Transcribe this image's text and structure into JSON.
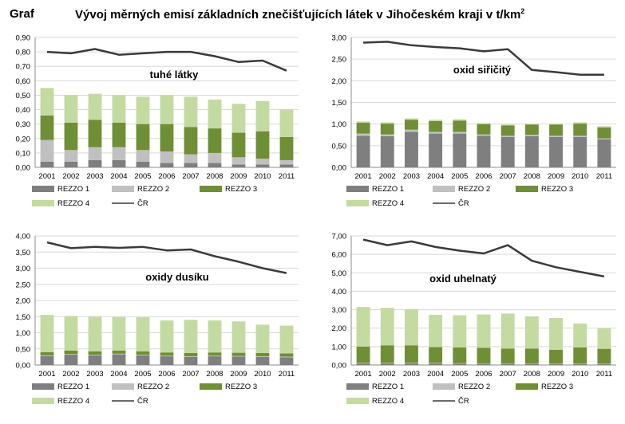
{
  "header": {
    "label": "Graf",
    "title": "Vývoj měrných emisí základních znečišťujících látek v Jihočeském kraji v t/km",
    "title_sup": "2"
  },
  "colors": {
    "REZZO 1": "#7f7f7f",
    "REZZO 2": "#c0c0c0",
    "REZZO 3": "#6e8f35",
    "REZZO 4": "#c3dba0",
    "ČR": "#3a3a3a"
  },
  "chart_data": [
    {
      "type": "bar",
      "stacked": true,
      "title": "tuhé látky",
      "categories": [
        "2001",
        "2002",
        "2003",
        "2004",
        "2005",
        "2006",
        "2007",
        "2008",
        "2009",
        "2010",
        "2011"
      ],
      "ylim": [
        0,
        0.9
      ],
      "yticks": [
        "0,00",
        "0,10",
        "0,20",
        "0,30",
        "0,40",
        "0,50",
        "0,60",
        "0,70",
        "0,80",
        "0,90"
      ],
      "grid": true,
      "legend": "bottom",
      "series": [
        {
          "name": "REZZO 1",
          "values": [
            0.04,
            0.04,
            0.05,
            0.05,
            0.04,
            0.03,
            0.03,
            0.03,
            0.02,
            0.02,
            0.02
          ]
        },
        {
          "name": "REZZO 2",
          "values": [
            0.15,
            0.08,
            0.09,
            0.09,
            0.08,
            0.08,
            0.06,
            0.07,
            0.05,
            0.04,
            0.03
          ]
        },
        {
          "name": "REZZO 3",
          "values": [
            0.17,
            0.19,
            0.19,
            0.17,
            0.18,
            0.19,
            0.19,
            0.17,
            0.17,
            0.19,
            0.16
          ]
        },
        {
          "name": "REZZO 4",
          "values": [
            0.19,
            0.19,
            0.18,
            0.19,
            0.19,
            0.2,
            0.21,
            0.2,
            0.2,
            0.21,
            0.19
          ]
        }
      ],
      "line": {
        "name": "ČR",
        "values": [
          0.8,
          0.79,
          0.82,
          0.78,
          0.79,
          0.8,
          0.8,
          0.77,
          0.73,
          0.74,
          0.67
        ]
      }
    },
    {
      "type": "bar",
      "stacked": true,
      "title": "oxid siřičitý",
      "categories": [
        "2001",
        "2002",
        "2003",
        "2004",
        "2005",
        "2006",
        "2007",
        "2008",
        "2009",
        "2010",
        "2011"
      ],
      "ylim": [
        0,
        3
      ],
      "yticks": [
        "0,00",
        "0,50",
        "1,00",
        "1,50",
        "2,00",
        "2,50",
        "3,00"
      ],
      "grid": true,
      "legend": "bottom",
      "series": [
        {
          "name": "REZZO 1",
          "values": [
            0.73,
            0.72,
            0.82,
            0.78,
            0.78,
            0.73,
            0.7,
            0.72,
            0.7,
            0.7,
            0.65
          ]
        },
        {
          "name": "REZZO 2",
          "values": [
            0.05,
            0.04,
            0.05,
            0.04,
            0.04,
            0.03,
            0.03,
            0.03,
            0.03,
            0.03,
            0.02
          ]
        },
        {
          "name": "REZZO 3",
          "values": [
            0.25,
            0.25,
            0.23,
            0.25,
            0.26,
            0.24,
            0.24,
            0.24,
            0.26,
            0.28,
            0.25
          ]
        },
        {
          "name": "REZZO 4",
          "values": [
            0.03,
            0.03,
            0.03,
            0.03,
            0.03,
            0.02,
            0.02,
            0.02,
            0.02,
            0.03,
            0.03
          ]
        }
      ],
      "line": {
        "name": "ČR",
        "values": [
          2.88,
          2.9,
          2.82,
          2.78,
          2.75,
          2.68,
          2.73,
          2.25,
          2.2,
          2.14,
          2.14
        ]
      }
    },
    {
      "type": "bar",
      "stacked": true,
      "title": "oxidy dusíku",
      "categories": [
        "2001",
        "2002",
        "2003",
        "2004",
        "2005",
        "2006",
        "2007",
        "2008",
        "2009",
        "2010",
        "2011"
      ],
      "ylim": [
        0,
        4
      ],
      "yticks": [
        "0,00",
        "0,50",
        "1,00",
        "1,50",
        "2,00",
        "2,50",
        "3,00",
        "3,50",
        "4,00"
      ],
      "grid": true,
      "legend": "bottom",
      "series": [
        {
          "name": "REZZO 1",
          "values": [
            0.28,
            0.32,
            0.3,
            0.33,
            0.3,
            0.27,
            0.25,
            0.27,
            0.26,
            0.25,
            0.24
          ]
        },
        {
          "name": "REZZO 2",
          "values": [
            0.02,
            0.02,
            0.02,
            0.02,
            0.02,
            0.02,
            0.02,
            0.02,
            0.02,
            0.02,
            0.02
          ]
        },
        {
          "name": "REZZO 3",
          "values": [
            0.1,
            0.11,
            0.1,
            0.1,
            0.1,
            0.1,
            0.1,
            0.1,
            0.1,
            0.1,
            0.1
          ]
        },
        {
          "name": "REZZO 4",
          "values": [
            1.15,
            1.07,
            1.08,
            1.04,
            1.06,
            0.99,
            1.03,
            0.99,
            0.97,
            0.88,
            0.86
          ]
        }
      ],
      "line": {
        "name": "ČR",
        "values": [
          3.8,
          3.62,
          3.66,
          3.63,
          3.66,
          3.55,
          3.58,
          3.37,
          3.2,
          3.0,
          2.85
        ]
      }
    },
    {
      "type": "bar",
      "stacked": true,
      "title": "oxid uhelnatý",
      "categories": [
        "2001",
        "2002",
        "2003",
        "2004",
        "2005",
        "2006",
        "2007",
        "2008",
        "2009",
        "2010",
        "2011"
      ],
      "ylim": [
        0,
        7
      ],
      "yticks": [
        "0,00",
        "1,00",
        "2,00",
        "3,00",
        "4,00",
        "5,00",
        "6,00",
        "7,00"
      ],
      "grid": true,
      "legend": "bottom",
      "series": [
        {
          "name": "REZZO 1",
          "values": [
            0.1,
            0.1,
            0.1,
            0.1,
            0.08,
            0.07,
            0.07,
            0.07,
            0.06,
            0.06,
            0.06
          ]
        },
        {
          "name": "REZZO 2",
          "values": [
            0.02,
            0.02,
            0.02,
            0.02,
            0.02,
            0.02,
            0.02,
            0.02,
            0.02,
            0.02,
            0.02
          ]
        },
        {
          "name": "REZZO 3",
          "values": [
            0.88,
            0.95,
            0.95,
            0.85,
            0.85,
            0.85,
            0.8,
            0.8,
            0.75,
            0.88,
            0.8
          ]
        },
        {
          "name": "REZZO 4",
          "values": [
            2.15,
            2.03,
            1.95,
            1.75,
            1.75,
            1.8,
            1.9,
            1.75,
            1.72,
            1.29,
            1.12
          ]
        }
      ],
      "line": {
        "name": "ČR",
        "values": [
          6.8,
          6.5,
          6.7,
          6.4,
          6.2,
          6.05,
          6.5,
          5.65,
          5.3,
          5.05,
          4.8
        ]
      }
    }
  ],
  "legend_labels": [
    "REZZO 1",
    "REZZO 2",
    "REZZO 3",
    "REZZO 4",
    "ČR"
  ]
}
